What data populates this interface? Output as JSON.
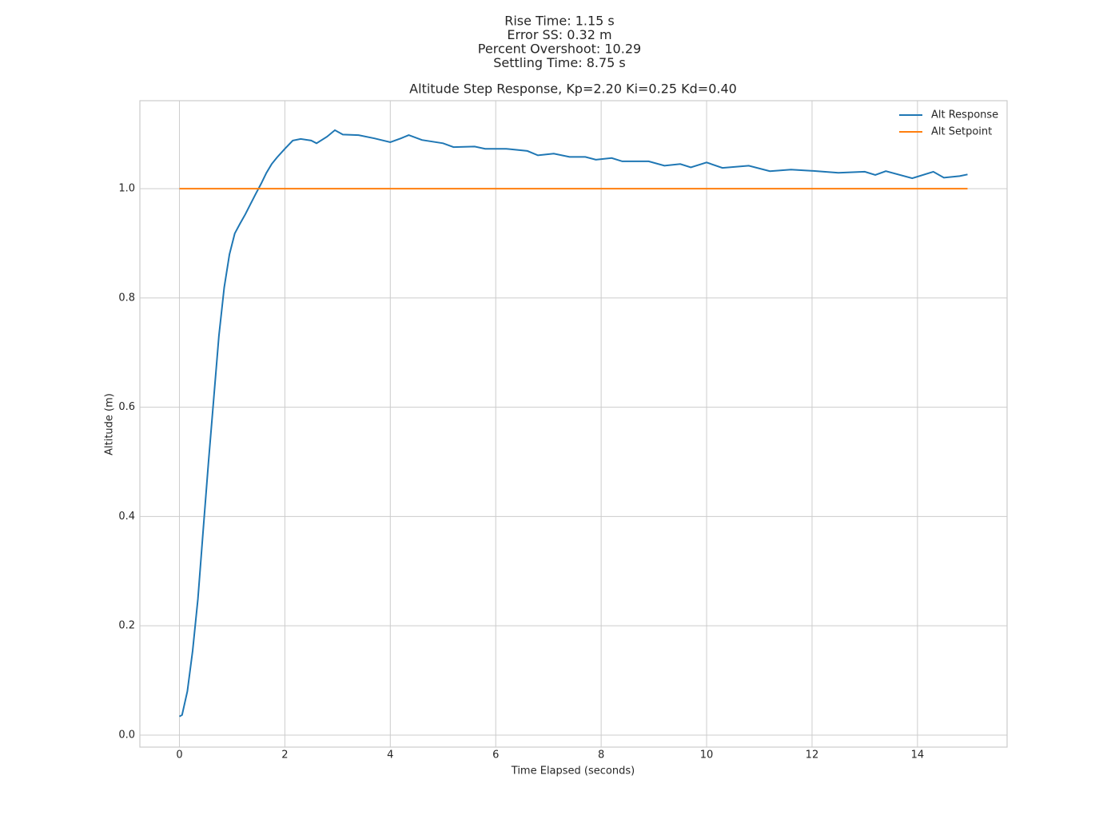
{
  "chart_data": {
    "type": "line",
    "subtitle": [
      "Rise Time: 1.15 s",
      "Error SS: 0.32 m",
      "Percent Overshoot: 10.29",
      "Settling Time: 8.75 s"
    ],
    "title": "Altitude Step Response, Kp=2.20 Ki=0.25 Kd=0.40",
    "x_label": "Time Elapsed (seconds)",
    "y_label": "Altitude (m)",
    "series": [
      {
        "name": "Alt Response",
        "color": "#1f77b4",
        "x": [
          0,
          0.05,
          0.15,
          0.25,
          0.35,
          0.45,
          0.55,
          0.65,
          0.75,
          0.85,
          0.95,
          1.05,
          1.15,
          1.25,
          1.35,
          1.45,
          1.55,
          1.65,
          1.75,
          1.85,
          2.0,
          2.15,
          2.3,
          2.5,
          2.6,
          2.8,
          2.95,
          3.1,
          3.4,
          3.7,
          4.0,
          4.2,
          4.35,
          4.6,
          5.0,
          5.2,
          5.6,
          5.8,
          6.2,
          6.6,
          6.8,
          7.1,
          7.4,
          7.7,
          7.9,
          8.2,
          8.4,
          8.9,
          9.2,
          9.5,
          9.7,
          10.0,
          10.3,
          10.8,
          11.2,
          11.6,
          12.1,
          12.5,
          13.0,
          13.2,
          13.4,
          13.9,
          14.3,
          14.5,
          14.8,
          14.95
        ],
        "values": [
          0.034,
          0.037,
          0.08,
          0.154,
          0.249,
          0.373,
          0.497,
          0.614,
          0.731,
          0.819,
          0.88,
          0.918,
          0.936,
          0.953,
          0.972,
          0.991,
          1.009,
          1.029,
          1.045,
          1.057,
          1.073,
          1.088,
          1.091,
          1.088,
          1.083,
          1.095,
          1.107,
          1.099,
          1.098,
          1.092,
          1.085,
          1.092,
          1.098,
          1.089,
          1.083,
          1.076,
          1.077,
          1.073,
          1.073,
          1.069,
          1.061,
          1.064,
          1.058,
          1.058,
          1.053,
          1.056,
          1.05,
          1.05,
          1.042,
          1.045,
          1.039,
          1.048,
          1.038,
          1.042,
          1.032,
          1.035,
          1.032,
          1.029,
          1.031,
          1.025,
          1.032,
          1.019,
          1.031,
          1.02,
          1.023,
          1.026
        ]
      },
      {
        "name": "Alt Setpoint",
        "color": "#ff7f0e",
        "x": [
          0,
          14.95
        ],
        "values": [
          1,
          1
        ]
      }
    ],
    "xlim": [
      -0.75,
      15.7
    ],
    "xticks": [
      0,
      2,
      4,
      6,
      8,
      10,
      12,
      14
    ],
    "ylim": [
      -0.022,
      1.161
    ],
    "yticks": [
      {
        "value": 0,
        "label": "0.0"
      },
      0.2,
      0.4,
      0.6,
      0.8,
      {
        "value": 1,
        "label": "1.0"
      }
    ],
    "grid": true,
    "legend": "upper right"
  }
}
